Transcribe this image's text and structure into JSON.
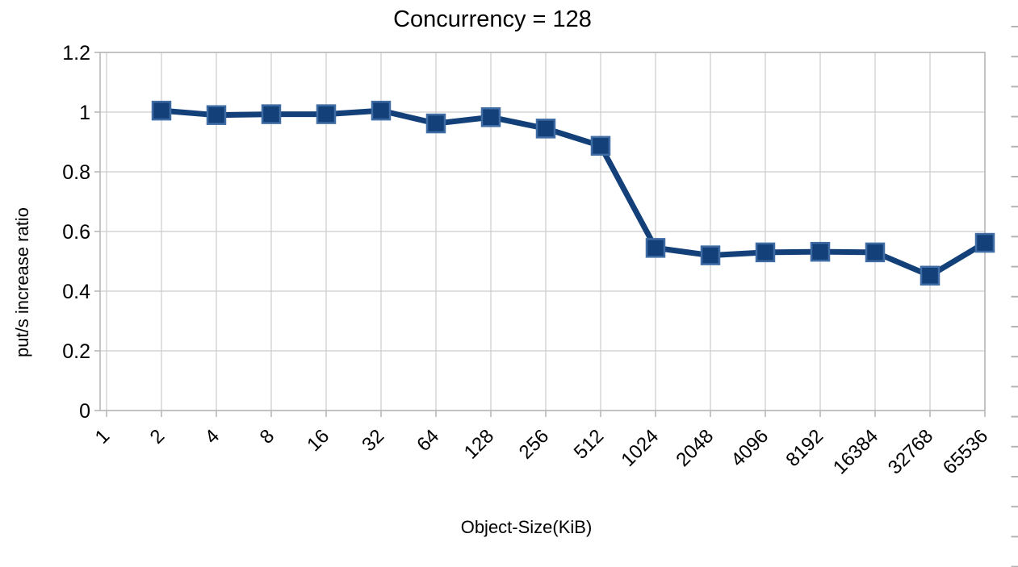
{
  "chart_data": {
    "type": "line",
    "title": "Concurrency = 128",
    "xlabel": "Object-Size(KiB)",
    "ylabel": "put/s increase ratio",
    "categories": [
      "1",
      "2",
      "4",
      "8",
      "16",
      "32",
      "64",
      "128",
      "256",
      "512",
      "1024",
      "2048",
      "4096",
      "8192",
      "16384",
      "32768",
      "65536"
    ],
    "series": [
      {
        "name": "put/s increase ratio",
        "values": [
          null,
          1.005,
          0.99,
          0.993,
          0.993,
          1.005,
          0.962,
          0.983,
          0.945,
          0.887,
          0.545,
          0.52,
          0.53,
          0.532,
          0.53,
          0.452,
          0.562
        ]
      }
    ],
    "ylim": [
      0,
      1.2
    ],
    "ytick_step": 0.2,
    "grid": true,
    "legend": "none",
    "marker": "square",
    "colors": {
      "series": "#134078",
      "marker_border": "#3e6ca3",
      "gridline": "#cccccc",
      "axis": "#b3b3b3",
      "text": "#000000",
      "background": "#ffffff"
    }
  },
  "decorations": {
    "right_edge_tick_count": 19
  }
}
